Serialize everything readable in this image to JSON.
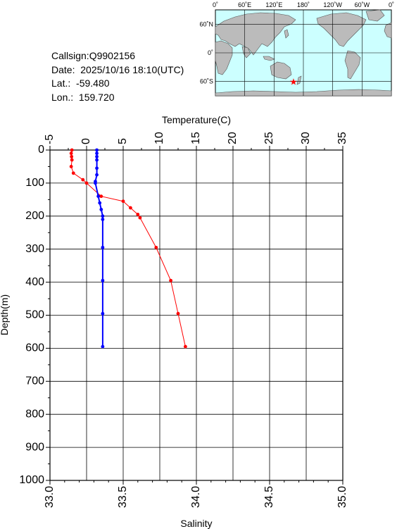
{
  "info": {
    "callsign_label": "Callsign:",
    "callsign": "Q9902156",
    "date_label": "Date:",
    "date": "2025/10/16 18:10(UTC)",
    "lat_label": "Lat.:",
    "lat": "-59.480",
    "lon_label": "Lon.:",
    "lon": "159.720"
  },
  "map": {
    "top_ticks": [
      "0˚",
      "60˚E",
      "120˚E",
      "180˚",
      "120˚W",
      "60˚W",
      "0˚"
    ],
    "lat_ticks": [
      "60˚N",
      "0˚",
      "60˚S"
    ],
    "ocean_color": "#ccffff",
    "land_color": "#bbbbbb",
    "marker_color": "#ff0000",
    "marker": {
      "lon": 159.72,
      "lat": -59.48
    }
  },
  "chart_data": {
    "type": "line",
    "ylabel": "Depth(m)",
    "ylim": [
      1000,
      0
    ],
    "yticks": [
      0,
      100,
      200,
      300,
      400,
      500,
      600,
      700,
      800,
      900,
      1000
    ],
    "top_axis": {
      "label": "Temperature(C)",
      "range": [
        -5,
        35
      ],
      "ticks": [
        -5,
        0,
        5,
        10,
        15,
        20,
        25,
        30,
        35
      ]
    },
    "bottom_axis": {
      "label": "Salinity",
      "range": [
        33.0,
        35.0
      ],
      "ticks": [
        "33.0",
        "33.5",
        "34.0",
        "34.5",
        "35.0"
      ]
    },
    "grid": true,
    "series": [
      {
        "axis": "temperature",
        "color": "#ff0000",
        "points": [
          [
            -2.0,
            0
          ],
          [
            -2.1,
            10
          ],
          [
            -2.05,
            20
          ],
          [
            -2.0,
            30
          ],
          [
            -2.1,
            50
          ],
          [
            -1.8,
            70
          ],
          [
            -0.5,
            90
          ],
          [
            0,
            100
          ],
          [
            2.0,
            140
          ],
          [
            5.0,
            155
          ],
          [
            6.0,
            175
          ],
          [
            7.0,
            195
          ],
          [
            7.3,
            205
          ],
          [
            9.5,
            295
          ],
          [
            11.5,
            395
          ],
          [
            12.5,
            495
          ],
          [
            13.5,
            595
          ]
        ]
      },
      {
        "axis": "salinity",
        "color": "#0000ff",
        "points": [
          [
            33.32,
            0
          ],
          [
            33.32,
            10
          ],
          [
            33.32,
            20
          ],
          [
            33.32,
            30
          ],
          [
            33.32,
            55
          ],
          [
            33.32,
            75
          ],
          [
            33.31,
            95
          ],
          [
            33.31,
            100
          ],
          [
            33.33,
            140
          ],
          [
            33.34,
            160
          ],
          [
            33.35,
            180
          ],
          [
            33.36,
            200
          ],
          [
            33.36,
            210
          ],
          [
            33.36,
            295
          ],
          [
            33.36,
            395
          ],
          [
            33.36,
            495
          ],
          [
            33.36,
            595
          ]
        ]
      }
    ]
  }
}
